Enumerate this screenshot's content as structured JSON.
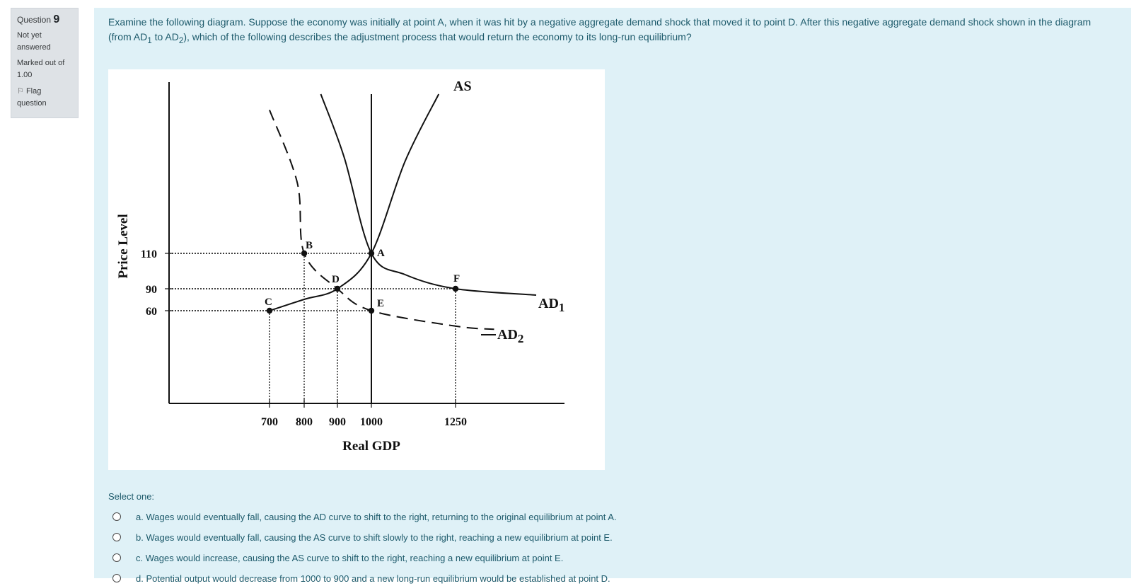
{
  "question_info": {
    "question_label": "Question",
    "question_number": "9",
    "status": "Not yet answered",
    "marked_out_of": "Marked out of 1.00",
    "flag_label": "Flag question"
  },
  "question": {
    "text_1": "Examine the following diagram.  Suppose the economy was initially at point A, when it was hit by a negative aggregate demand shock that moved it to point D.  After this negative aggregate demand shock shown in the diagram (from AD",
    "sub_1": "1",
    "text_2": " to AD",
    "sub_2": "2",
    "text_3": "), which of the following describes the adjustment process that would return the economy to its long-run equilibrium?"
  },
  "chart_data": {
    "type": "line",
    "xlabel": "Real GDP",
    "ylabel": "Price Level",
    "x_ticks": [
      "700",
      "800",
      "900",
      "1000",
      "1250"
    ],
    "y_ticks": [
      "110",
      "90",
      "60"
    ],
    "curves": [
      {
        "name": "AS",
        "label": "AS",
        "style": "solid",
        "points": [
          [
            700,
            60
          ],
          [
            800,
            70
          ],
          [
            900,
            90
          ],
          [
            1000,
            110
          ],
          [
            1100,
            175
          ],
          [
            1200,
            260
          ]
        ]
      },
      {
        "name": "AD1",
        "label": "AD",
        "label_sub": "1",
        "style": "solid",
        "points": [
          [
            850,
            260
          ],
          [
            920,
            180
          ],
          [
            1000,
            110
          ],
          [
            1100,
            98
          ],
          [
            1250,
            90
          ],
          [
            1480,
            78
          ]
        ]
      },
      {
        "name": "AD2",
        "label": "AD",
        "label_sub": "2",
        "style": "dashed",
        "points": [
          [
            700,
            240
          ],
          [
            780,
            160
          ],
          [
            800,
            110
          ],
          [
            900,
            90
          ],
          [
            1000,
            60
          ],
          [
            1250,
            50
          ],
          [
            1360,
            48
          ]
        ]
      },
      {
        "name": "LRAS",
        "label": "",
        "style": "solid",
        "points": [
          [
            1000,
            0
          ],
          [
            1000,
            260
          ]
        ]
      }
    ],
    "points": [
      {
        "label": "A",
        "x": 1000,
        "y": 110
      },
      {
        "label": "B",
        "x": 800,
        "y": 110
      },
      {
        "label": "C",
        "x": 700,
        "y": 60
      },
      {
        "label": "D",
        "x": 900,
        "y": 90
      },
      {
        "label": "E",
        "x": 1000,
        "y": 60
      },
      {
        "label": "F",
        "x": 1250,
        "y": 90
      }
    ]
  },
  "answer_block": {
    "prompt": "Select one:",
    "options": [
      "a. Wages would eventually fall, causing the AD curve to shift to the right, returning to the original equilibrium at point A.",
      "b. Wages would eventually fall, causing the AS curve to shift slowly to the right, reaching a new equilibrium at point E.",
      "c. Wages would increase, causing the AS curve to shift to the right, reaching a new equilibrium at point E.",
      "d. Potential output would decrease from 1000 to 900 and a new long-run equilibrium would be established at point D."
    ]
  },
  "colors": {
    "content_bg": "#dff1f7",
    "info_bg": "#dee2e6",
    "text": "#1d5a6b"
  }
}
